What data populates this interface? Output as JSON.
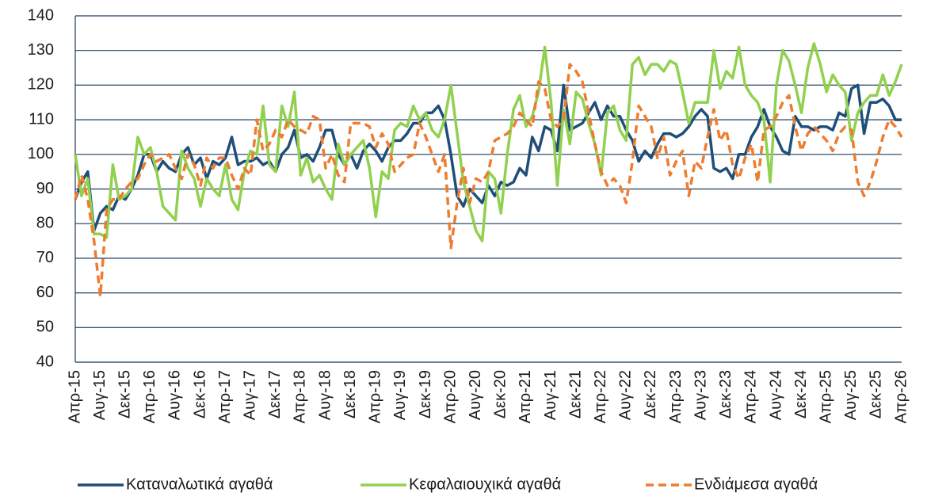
{
  "chart_data": {
    "type": "line",
    "categories": [
      "Απρ-15",
      null,
      null,
      null,
      "Αυγ-15",
      null,
      null,
      null,
      "Δεκ-15",
      null,
      null,
      null,
      "Απρ-16",
      null,
      null,
      null,
      "Αυγ-16",
      null,
      null,
      null,
      "Δεκ-16",
      null,
      null,
      null,
      "Απρ-17",
      null,
      null,
      null,
      "Αυγ-17",
      null,
      null,
      null,
      "Δεκ-17",
      null,
      null,
      null,
      "Απρ-18",
      null,
      null,
      null,
      "Αυγ-18",
      null,
      null,
      null,
      "Δεκ-18",
      null,
      null,
      null,
      "Απρ-19",
      null,
      null,
      null,
      "Αυγ-19",
      null,
      null,
      null,
      "Δεκ-19",
      null,
      null,
      null,
      "Απρ-20",
      null,
      null,
      null,
      "Αυγ-20",
      null,
      null,
      null,
      "Δεκ-20",
      null,
      null,
      null,
      "Απρ-21",
      null,
      null,
      null,
      "Αυγ-21",
      null,
      null,
      null,
      "Δεκ-21",
      null,
      null,
      null,
      "Απρ-22",
      null,
      null,
      null,
      "Αυγ-22",
      null,
      null,
      null,
      "Δεκ-22",
      null,
      null,
      null,
      "Απρ-23",
      null,
      null,
      null,
      "Αυγ-23",
      null,
      null,
      null,
      "Δεκ-23",
      null,
      null,
      null,
      "Απρ-24",
      null,
      null,
      null,
      "Αυγ-24",
      null,
      null,
      null,
      "Δεκ-24",
      null,
      null,
      null,
      "Απρ-25",
      null,
      null,
      null,
      "Αυγ-25",
      null,
      null,
      null,
      "Δεκ-25",
      null,
      null,
      null,
      "Απρ-26"
    ],
    "series": [
      {
        "name": "Καταναλωτικά αγαθά",
        "color": "#1f4e79",
        "dashed": false,
        "values": [
          87,
          92,
          95,
          78,
          83,
          85,
          84,
          88,
          87,
          90,
          94,
          100,
          100,
          95,
          98,
          96,
          95,
          100,
          102,
          97,
          99,
          93,
          98,
          97,
          99,
          105,
          97,
          98,
          98,
          99,
          97,
          98,
          95,
          100,
          102,
          107,
          99,
          100,
          98,
          102,
          107,
          107,
          100,
          97,
          100,
          96,
          101,
          103,
          101,
          98,
          102,
          104,
          104,
          106,
          109,
          109,
          112,
          112,
          114,
          110,
          100,
          88,
          85,
          90,
          88,
          86,
          91,
          88,
          92,
          91,
          92,
          96,
          94,
          105,
          101,
          108,
          107,
          101,
          120,
          107,
          108,
          109,
          112,
          115,
          110,
          114,
          111,
          111,
          107,
          104,
          98,
          101,
          99,
          103,
          106,
          106,
          105,
          106,
          108,
          111,
          113,
          111,
          96,
          95,
          96,
          93,
          100,
          100,
          105,
          108,
          113,
          108,
          105,
          101,
          100,
          111,
          108,
          108,
          107,
          108,
          108,
          107,
          112,
          111,
          119,
          120,
          106,
          115,
          115,
          116,
          114,
          110,
          110
        ]
      },
      {
        "name": "Κεφαλαιουχικά αγαθά",
        "color": "#92d050",
        "dashed": false,
        "values": [
          100,
          88,
          93,
          77,
          77,
          76,
          97,
          87,
          88,
          90,
          105,
          100,
          102,
          95,
          85,
          83,
          81,
          101,
          96,
          93,
          85,
          93,
          90,
          88,
          97,
          87,
          84,
          95,
          101,
          100,
          114,
          97,
          95,
          114,
          108,
          118,
          94,
          99,
          92,
          94,
          90,
          87,
          103,
          97,
          100,
          102,
          104,
          96,
          82,
          95,
          93,
          107,
          109,
          108,
          114,
          110,
          112,
          107,
          105,
          110,
          120,
          106,
          92,
          85,
          78,
          75,
          95,
          93,
          83,
          100,
          113,
          117,
          108,
          111,
          118,
          131,
          115,
          91,
          113,
          103,
          118,
          116,
          109,
          103,
          94,
          112,
          114,
          107,
          104,
          126,
          128,
          123,
          126,
          126,
          124,
          127,
          126,
          118,
          109,
          115,
          115,
          115,
          130,
          119,
          124,
          122,
          131,
          120,
          117,
          115,
          110,
          92,
          120,
          130,
          127,
          120,
          112,
          125,
          132,
          126,
          118,
          123,
          120,
          118,
          104,
          112,
          115,
          117,
          117,
          123,
          117,
          121,
          126
        ]
      },
      {
        "name": "Ενδιάμεσα αγαθά",
        "color": "#ed7d31",
        "dashed": true,
        "values": [
          87,
          94,
          87,
          75,
          59,
          84,
          87,
          87,
          90,
          92,
          93,
          97,
          100,
          98,
          99,
          100,
          96,
          93,
          100,
          97,
          91,
          99,
          96,
          99,
          99,
          94,
          90,
          96,
          94,
          110,
          101,
          103,
          107,
          105,
          110,
          108,
          107,
          106,
          111,
          110,
          96,
          100,
          94,
          92,
          109,
          109,
          109,
          108,
          102,
          106,
          103,
          95,
          97,
          99,
          100,
          109,
          105,
          100,
          95,
          100,
          73,
          86,
          96,
          86,
          93,
          92,
          95,
          104,
          105,
          106,
          108,
          112,
          110,
          108,
          121,
          119,
          110,
          108,
          110,
          126,
          124,
          121,
          112,
          103,
          95,
          91,
          93,
          91,
          86,
          98,
          114,
          111,
          108,
          99,
          105,
          94,
          98,
          101,
          88,
          98,
          96,
          105,
          113,
          104,
          107,
          97,
          93,
          99,
          103,
          92,
          107,
          108,
          111,
          115,
          117,
          108,
          101,
          106,
          108,
          106,
          104,
          101,
          106,
          108,
          107,
          92,
          88,
          92,
          98,
          105,
          110,
          108,
          105
        ]
      }
    ],
    "ylim": [
      40,
      140
    ],
    "yticks": [
      40,
      50,
      60,
      70,
      80,
      90,
      100,
      110,
      120,
      130,
      140
    ],
    "grid": true
  }
}
